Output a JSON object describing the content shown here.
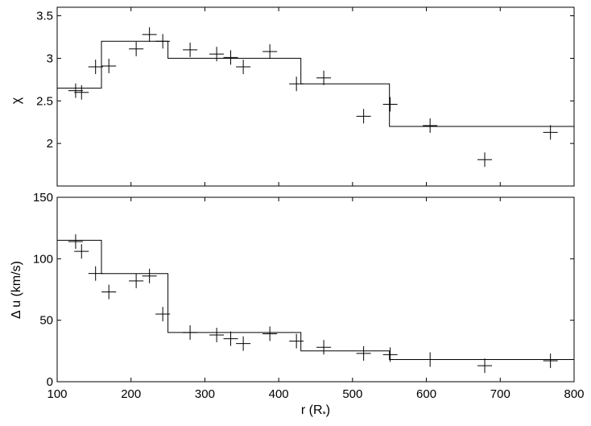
{
  "chart_data": [
    {
      "type": "scatter",
      "xlabel": "",
      "ylabel": "χ",
      "xlim": [
        100,
        800
      ],
      "ylim": [
        1.5,
        3.6
      ],
      "xticks": [
        100,
        200,
        300,
        400,
        500,
        600,
        700,
        800
      ],
      "xtick_labels_shown": false,
      "yticks": [
        2,
        2.5,
        3,
        3.5
      ],
      "ytick_labels": [
        "2",
        "2.5",
        "3",
        "3.5"
      ],
      "series": [
        {
          "kind": "scatter",
          "marker": "plus",
          "points": [
            [
              125,
              2.62
            ],
            [
              133,
              2.6
            ],
            [
              152,
              2.9
            ],
            [
              170,
              2.91
            ],
            [
              207,
              3.11
            ],
            [
              225,
              3.28
            ],
            [
              243,
              3.2
            ],
            [
              280,
              3.1
            ],
            [
              316,
              3.05
            ],
            [
              335,
              3.01
            ],
            [
              352,
              2.9
            ],
            [
              388,
              3.08
            ],
            [
              424,
              2.7
            ],
            [
              461,
              2.77
            ],
            [
              515,
              2.32
            ],
            [
              551,
              2.46
            ],
            [
              605,
              2.21
            ],
            [
              679,
              1.81
            ],
            [
              768,
              2.13
            ]
          ]
        },
        {
          "kind": "step",
          "segments": [
            [
              100,
              160,
              2.65
            ],
            [
              160,
              250,
              3.2
            ],
            [
              250,
              430,
              3.0
            ],
            [
              430,
              550,
              2.7
            ],
            [
              550,
              800,
              2.2
            ]
          ]
        }
      ]
    },
    {
      "type": "scatter",
      "xlabel": "r (R*)",
      "ylabel": "Δ u (km/s)",
      "xlim": [
        100,
        800
      ],
      "ylim": [
        0,
        150
      ],
      "xticks": [
        100,
        200,
        300,
        400,
        500,
        600,
        700,
        800
      ],
      "xtick_labels": [
        "100",
        "200",
        "300",
        "400",
        "500",
        "600",
        "700",
        "800"
      ],
      "yticks": [
        0,
        50,
        100,
        150
      ],
      "ytick_labels": [
        "0",
        "50",
        "100",
        "150"
      ],
      "series": [
        {
          "kind": "scatter",
          "marker": "plus",
          "points": [
            [
              125,
              114
            ],
            [
              133,
              106
            ],
            [
              152,
              88
            ],
            [
              170,
              73
            ],
            [
              207,
              82
            ],
            [
              225,
              86
            ],
            [
              243,
              55
            ],
            [
              280,
              40
            ],
            [
              316,
              38
            ],
            [
              335,
              35
            ],
            [
              352,
              31
            ],
            [
              388,
              39
            ],
            [
              424,
              33
            ],
            [
              461,
              28
            ],
            [
              515,
              23
            ],
            [
              551,
              22
            ],
            [
              605,
              18
            ],
            [
              679,
              13
            ],
            [
              768,
              17
            ]
          ]
        },
        {
          "kind": "step",
          "segments": [
            [
              100,
              160,
              115
            ],
            [
              160,
              250,
              88
            ],
            [
              250,
              430,
              40
            ],
            [
              430,
              550,
              25
            ],
            [
              550,
              800,
              18
            ]
          ]
        }
      ]
    }
  ]
}
